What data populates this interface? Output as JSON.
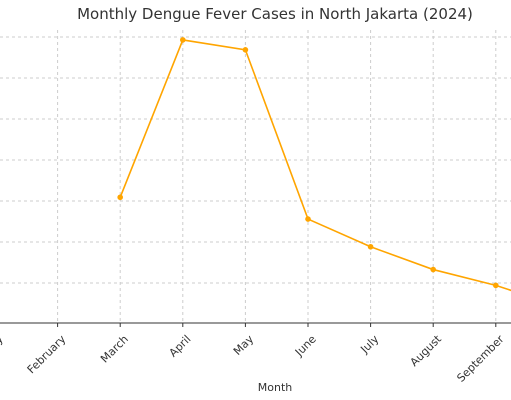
{
  "chart_data": {
    "type": "line",
    "title": "Monthly Dengue Fever Cases in North Jakarta (2024)",
    "xlabel": "Month",
    "ylabel": "",
    "categories": [
      "January",
      "February",
      "March",
      "April",
      "May",
      "June",
      "July",
      "August",
      "September"
    ],
    "series": [
      {
        "color": "#FFA500",
        "values": [
          null,
          null,
          127,
          286,
          276,
          105,
          77,
          54,
          38
        ]
      }
    ],
    "ylim": [
      0,
      296
    ],
    "grid": true,
    "legend": "none"
  }
}
